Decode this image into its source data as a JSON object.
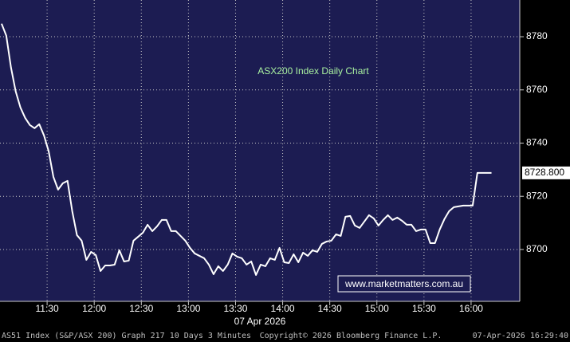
{
  "chart_data": {
    "type": "line",
    "title": "ASX200 Index Daily Chart",
    "watermark": "www.marketmatters.com.au",
    "x_date_label": "07 Apr 2026",
    "footer": {
      "left": "AS51 Index (S&P/ASX 200) Graph 217 10 Days 3 Minutes",
      "center": "Copyright© 2026 Bloomberg Finance L.P.",
      "right": "07-Apr-2026 16:29:40"
    },
    "color": "#ffffff",
    "grid": true,
    "xlim": [
      660,
      991
    ],
    "ylim": [
      8680.5,
      8793.8
    ],
    "xticks": [
      {
        "value": 690,
        "label": "11:30"
      },
      {
        "value": 720,
        "label": "12:00"
      },
      {
        "value": 750,
        "label": "12:30"
      },
      {
        "value": 780,
        "label": "13:00"
      },
      {
        "value": 810,
        "label": "13:30"
      },
      {
        "value": 840,
        "label": "14:00"
      },
      {
        "value": 870,
        "label": "14:30"
      },
      {
        "value": 900,
        "label": "15:00"
      },
      {
        "value": 930,
        "label": "15:30"
      },
      {
        "value": 960,
        "label": "16:00"
      }
    ],
    "yticks": [
      8700,
      8720,
      8740,
      8760,
      8780
    ],
    "last_label": {
      "value": 8728.8,
      "label": "8728.800"
    },
    "x": [
      661,
      664,
      667,
      670,
      673,
      676,
      679,
      682,
      685,
      688,
      691,
      694,
      697,
      700,
      703,
      706,
      709,
      712,
      715,
      718,
      721,
      724,
      727,
      730,
      733,
      736,
      739,
      742,
      745,
      748,
      751,
      754,
      757,
      760,
      763,
      766,
      769,
      772,
      775,
      778,
      781,
      784,
      787,
      790,
      793,
      796,
      799,
      802,
      805,
      808,
      811,
      814,
      817,
      820,
      823,
      826,
      829,
      832,
      835,
      838,
      841,
      844,
      847,
      850,
      853,
      856,
      859,
      862,
      865,
      868,
      871,
      874,
      877,
      880,
      883,
      886,
      889,
      892,
      895,
      898,
      901,
      904,
      907,
      910,
      913,
      916,
      919,
      922,
      925,
      928,
      931,
      934,
      937,
      940,
      943,
      946,
      949,
      952,
      955,
      958,
      961,
      964,
      967,
      970,
      973
    ],
    "values": [
      8784.9,
      8780.4,
      8768.4,
      8759.4,
      8753.4,
      8749.5,
      8746.8,
      8745.6,
      8747.1,
      8742.9,
      8736.9,
      8727.3,
      8722.5,
      8724.9,
      8725.8,
      8714.4,
      8705.4,
      8703.3,
      8696.1,
      8699.1,
      8697.9,
      8691.9,
      8694,
      8694,
      8694.3,
      8699.7,
      8695.5,
      8695.8,
      8703.3,
      8704.8,
      8706.3,
      8709.3,
      8706.9,
      8708.7,
      8711.1,
      8711.1,
      8706.9,
      8706.9,
      8705.1,
      8703.3,
      8700.6,
      8698.5,
      8697.6,
      8696.7,
      8694.3,
      8690.7,
      8693.7,
      8691.9,
      8694.3,
      8698.5,
      8697.3,
      8696.7,
      8694.3,
      8695.5,
      8690.4,
      8694.3,
      8693.7,
      8696.7,
      8696.1,
      8700.6,
      8695.2,
      8694.9,
      8698.2,
      8695.2,
      8698.8,
      8697.6,
      8699.7,
      8699.1,
      8702.1,
      8703,
      8703.3,
      8705.7,
      8705.1,
      8712.3,
      8712.6,
      8709,
      8708.1,
      8710.5,
      8712.9,
      8711.7,
      8709,
      8711.1,
      8712.9,
      8711.1,
      8712,
      8710.8,
      8709.3,
      8709.3,
      8706.9,
      8707.5,
      8707.5,
      8702.4,
      8702.4,
      8707.5,
      8711.4,
      8714.4,
      8715.9,
      8716.2,
      8716.5,
      8716.5,
      8716.5,
      8728.8,
      8728.8,
      8728.8,
      8728.8
    ]
  }
}
